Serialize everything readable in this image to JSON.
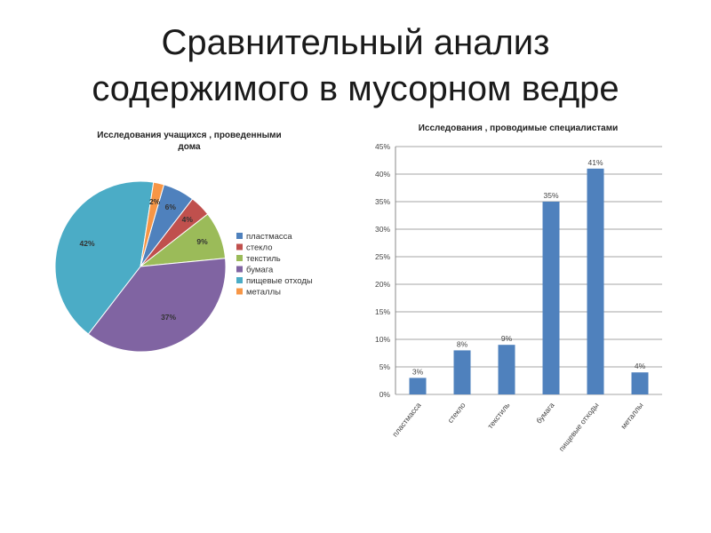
{
  "slide": {
    "title_line1": "Сравнительный анализ",
    "title_line2": "содержимого в мусорном ведре"
  },
  "chart_data": [
    {
      "type": "pie",
      "title_line1": "Исследования учащихся , проведенными",
      "title_line2": "дома",
      "categories": [
        "пластмасса",
        "стекло",
        "текстиль",
        "бумага",
        "пищевые отходы",
        "металлы"
      ],
      "values": [
        6,
        4,
        9,
        37,
        42,
        2
      ],
      "data_labels": [
        "6%",
        "4%",
        "9%",
        "37%",
        "42%",
        "2%"
      ],
      "colors": [
        "#4f81bd",
        "#c0504d",
        "#9bbb59",
        "#8064a2",
        "#4bacc6",
        "#f79646"
      ],
      "legend": "right"
    },
    {
      "type": "bar",
      "title": "Исследования , проводимые специалистами",
      "categories": [
        "пластмасса",
        "стекло",
        "текстиль",
        "бумага",
        "пищевые отходы",
        "металлы"
      ],
      "values": [
        3,
        8,
        9,
        35,
        41,
        4
      ],
      "data_labels": [
        "3%",
        "8%",
        "9%",
        "35%",
        "41%",
        "4%"
      ],
      "ylim": [
        0,
        45
      ],
      "ytick_labels": [
        "0%",
        "5%",
        "10%",
        "15%",
        "20%",
        "25%",
        "30%",
        "35%",
        "40%",
        "45%"
      ],
      "bar_color": "#4f81bd",
      "grid": true
    }
  ]
}
